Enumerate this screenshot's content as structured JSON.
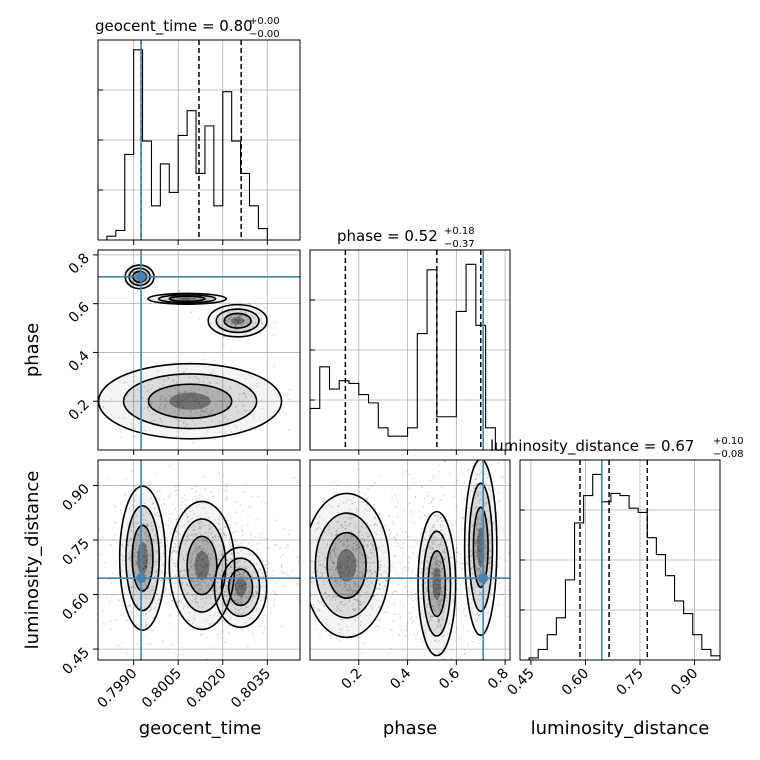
{
  "parameters": [
    {
      "key": "geocent_time",
      "label": "geocent_time",
      "range": [
        0.7978,
        0.8046
      ],
      "ticks": [
        0.799,
        0.8005,
        0.802,
        0.8035
      ],
      "tick_labels": [
        "0.7990",
        "0.8005",
        "0.8020",
        "0.8035"
      ]
    },
    {
      "key": "phase",
      "label": "phase",
      "range": [
        0.0,
        0.82
      ],
      "ticks": [
        0.2,
        0.4,
        0.6,
        0.8
      ],
      "tick_labels": [
        "0.2",
        "0.4",
        "0.6",
        "0.8"
      ]
    },
    {
      "key": "luminosity_distance",
      "label": "luminosity_distance",
      "range": [
        0.42,
        0.97
      ],
      "ticks": [
        0.45,
        0.6,
        0.75,
        0.9
      ],
      "tick_labels": [
        "0.45",
        "0.60",
        "0.75",
        "0.90"
      ]
    }
  ],
  "titles": [
    {
      "param": "geocent_time",
      "main": "geocent_time = 0.80",
      "sup": "+0.00",
      "sub": "−0.00"
    },
    {
      "param": "phase",
      "main": "phase = 0.52",
      "sup": "+0.18",
      "sub": "−0.37"
    },
    {
      "param": "luminosity_distance",
      "main": "luminosity_distance = 0.67",
      "sup": "+0.10",
      "sub": "−0.08"
    }
  ],
  "colors": {
    "truth": "#4682b4",
    "line": "#000000",
    "grid": "#b0b0b0",
    "background": "#ffffff"
  },
  "chart_data": {
    "type": "corner",
    "grid": true,
    "truths": {
      "geocent_time": 0.79925,
      "phase": 0.71,
      "luminosity_distance": 0.645
    },
    "quantiles": {
      "geocent_time": [
        0.79925,
        0.8012,
        0.80262
      ],
      "phase": [
        0.145,
        0.52,
        0.7
      ],
      "luminosity_distance": [
        0.585,
        0.665,
        0.77
      ]
    },
    "histograms": [
      {
        "param": "geocent_time",
        "edges": [
          0.7978,
          0.7981,
          0.7984,
          0.7987,
          0.799,
          0.7993,
          0.7996,
          0.7999,
          0.8002,
          0.8005,
          0.8008,
          0.8011,
          0.8014,
          0.8017,
          0.802,
          0.8023,
          0.8026,
          0.8029,
          0.8032,
          0.8035,
          0.8038,
          0.8041,
          0.8044
        ],
        "counts": [
          0,
          2,
          5,
          45,
          100,
          52,
          18,
          40,
          25,
          55,
          68,
          35,
          60,
          18,
          78,
          52,
          35,
          18,
          6,
          0,
          0,
          0
        ],
        "ymax": 102
      },
      {
        "param": "phase",
        "edges": [
          0.0,
          0.04,
          0.08,
          0.12,
          0.16,
          0.2,
          0.24,
          0.28,
          0.32,
          0.36,
          0.4,
          0.44,
          0.48,
          0.52,
          0.56,
          0.6,
          0.64,
          0.68,
          0.72,
          0.76,
          0.8
        ],
        "counts": [
          15,
          30,
          22,
          25,
          24,
          20,
          17,
          8,
          5,
          5,
          8,
          42,
          65,
          12,
          12,
          50,
          67,
          45,
          8,
          0
        ],
        "ymax": 70
      },
      {
        "param": "luminosity_distance",
        "edges": [
          0.42,
          0.445,
          0.47,
          0.495,
          0.52,
          0.545,
          0.57,
          0.595,
          0.62,
          0.645,
          0.67,
          0.695,
          0.72,
          0.745,
          0.77,
          0.795,
          0.82,
          0.845,
          0.87,
          0.895,
          0.92,
          0.945,
          0.97
        ],
        "counts": [
          0,
          1,
          5,
          12,
          20,
          38,
          65,
          78,
          88,
          75,
          79,
          78,
          72,
          70,
          58,
          50,
          40,
          28,
          22,
          12,
          5,
          2
        ],
        "ymax": 92
      }
    ],
    "pairs": [
      {
        "x": "geocent_time",
        "y": "phase",
        "clusters": [
          {
            "cx": 0.7992,
            "cy": 0.71,
            "sx": 0.00022,
            "sy": 0.022,
            "n": 160
          },
          {
            "cx": 0.8025,
            "cy": 0.53,
            "sx": 0.00045,
            "sy": 0.03,
            "n": 170
          },
          {
            "cx": 0.8008,
            "cy": 0.62,
            "sx": 0.0006,
            "sy": 0.01,
            "n": 80
          },
          {
            "cx": 0.8009,
            "cy": 0.2,
            "sx": 0.0014,
            "sy": 0.07,
            "n": 300
          }
        ]
      },
      {
        "x": "geocent_time",
        "y": "luminosity_distance",
        "clusters": [
          {
            "cx": 0.7993,
            "cy": 0.7,
            "sx": 0.00035,
            "sy": 0.09,
            "n": 320
          },
          {
            "cx": 0.8013,
            "cy": 0.68,
            "sx": 0.0005,
            "sy": 0.08,
            "n": 260
          },
          {
            "cx": 0.8026,
            "cy": 0.62,
            "sx": 0.0004,
            "sy": 0.05,
            "n": 240
          },
          {
            "cx": 0.8012,
            "cy": 0.7,
            "sx": 0.0016,
            "sy": 0.11,
            "n": 600
          }
        ]
      },
      {
        "x": "phase",
        "y": "luminosity_distance",
        "clusters": [
          {
            "cx": 0.15,
            "cy": 0.68,
            "sx": 0.08,
            "sy": 0.09,
            "n": 500
          },
          {
            "cx": 0.52,
            "cy": 0.63,
            "sx": 0.035,
            "sy": 0.09,
            "n": 420
          },
          {
            "cx": 0.7,
            "cy": 0.73,
            "sx": 0.03,
            "sy": 0.11,
            "n": 420
          },
          {
            "cx": 0.4,
            "cy": 0.7,
            "sx": 0.22,
            "sy": 0.12,
            "n": 500
          }
        ]
      }
    ]
  }
}
